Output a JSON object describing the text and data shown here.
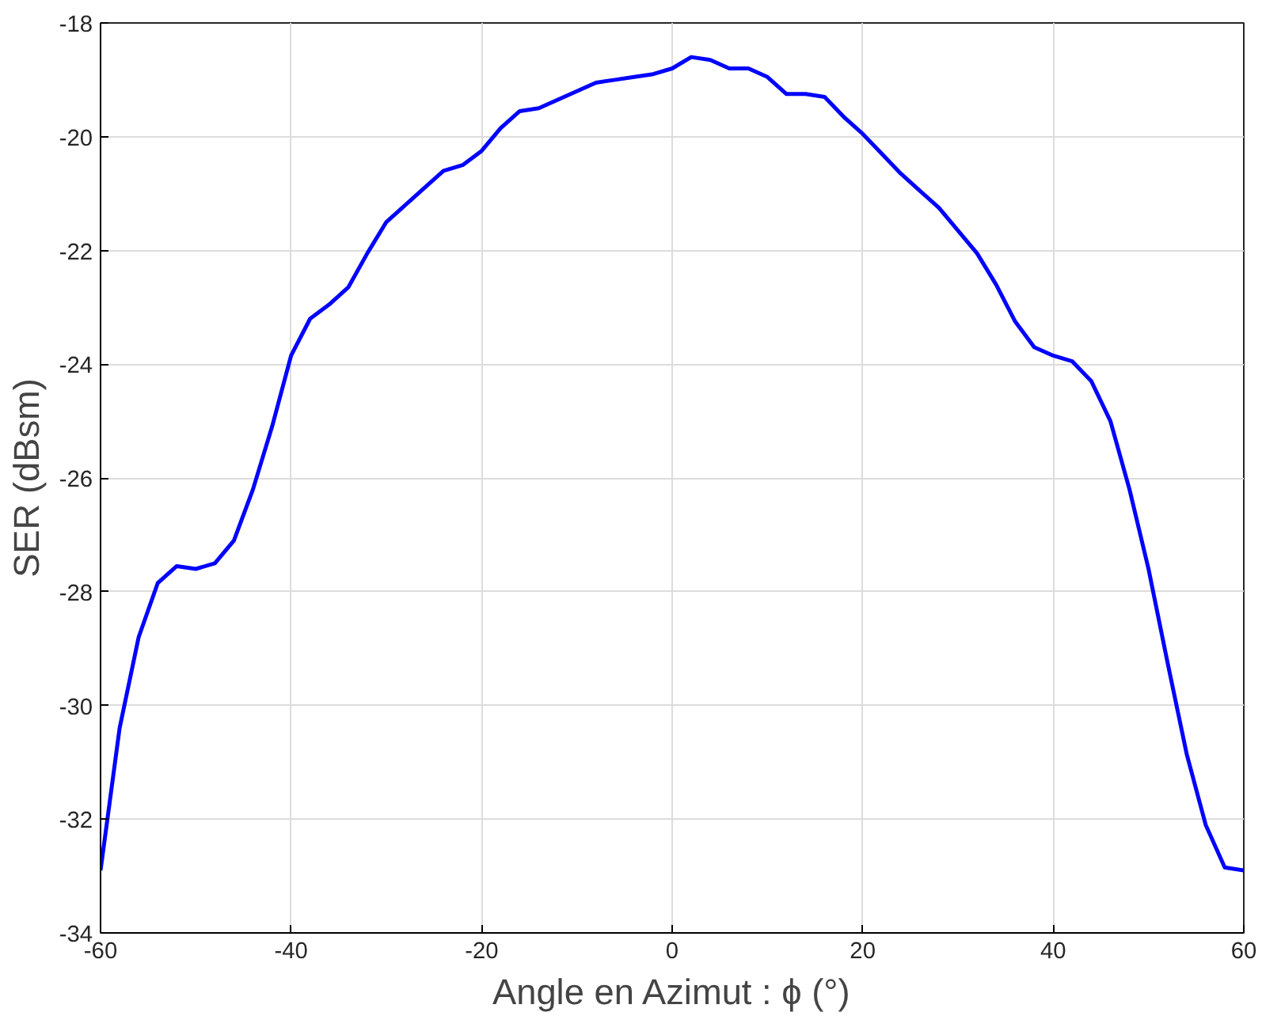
{
  "chart_data": {
    "type": "line",
    "xlabel": "Angle en Azimut : ϕ (°)",
    "ylabel": "SER (dBsm)",
    "x": [
      -60,
      -58,
      -56,
      -54,
      -52,
      -50,
      -48,
      -46,
      -44,
      -42,
      -40,
      -38,
      -36,
      -34,
      -32,
      -30,
      -28,
      -26,
      -24,
      -22,
      -20,
      -18,
      -16,
      -14,
      -12,
      -10,
      -8,
      -6,
      -4,
      -2,
      0,
      2,
      4,
      6,
      8,
      10,
      12,
      14,
      16,
      18,
      20,
      22,
      24,
      26,
      28,
      30,
      32,
      34,
      36,
      38,
      40,
      42,
      44,
      46,
      48,
      50,
      52,
      54,
      56,
      58,
      60
    ],
    "series": [
      {
        "color": "#0000ff",
        "values": [
          -32.9,
          -30.4,
          -28.8,
          -27.85,
          -27.55,
          -27.6,
          -27.5,
          -27.1,
          -26.2,
          -25.1,
          -23.85,
          -23.2,
          -22.95,
          -22.65,
          -22.05,
          -21.5,
          -21.2,
          -20.9,
          -20.6,
          -20.5,
          -20.25,
          -19.85,
          -19.55,
          -19.5,
          -19.35,
          -19.2,
          -19.05,
          -19.0,
          -18.95,
          -18.9,
          -18.8,
          -18.6,
          -18.65,
          -18.8,
          -18.8,
          -18.95,
          -19.25,
          -19.25,
          -19.3,
          -19.65,
          -19.95,
          -20.3,
          -20.65,
          -20.95,
          -21.25,
          -21.65,
          -22.05,
          -22.6,
          -23.25,
          -23.7,
          -23.85,
          -23.95,
          -24.3,
          -25.0,
          -26.2,
          -27.6,
          -29.25,
          -30.85,
          -32.1,
          -32.85,
          -32.9
        ]
      }
    ],
    "xlim": [
      -60,
      60
    ],
    "xticks": [
      -60,
      -40,
      -20,
      0,
      20,
      40,
      60
    ],
    "ylim": [
      -34,
      -18
    ],
    "yticks": [
      -34,
      -32,
      -30,
      -28,
      -26,
      -24,
      -22,
      -20,
      -18
    ],
    "grid": true,
    "marker": "none",
    "line_style": "solid"
  }
}
